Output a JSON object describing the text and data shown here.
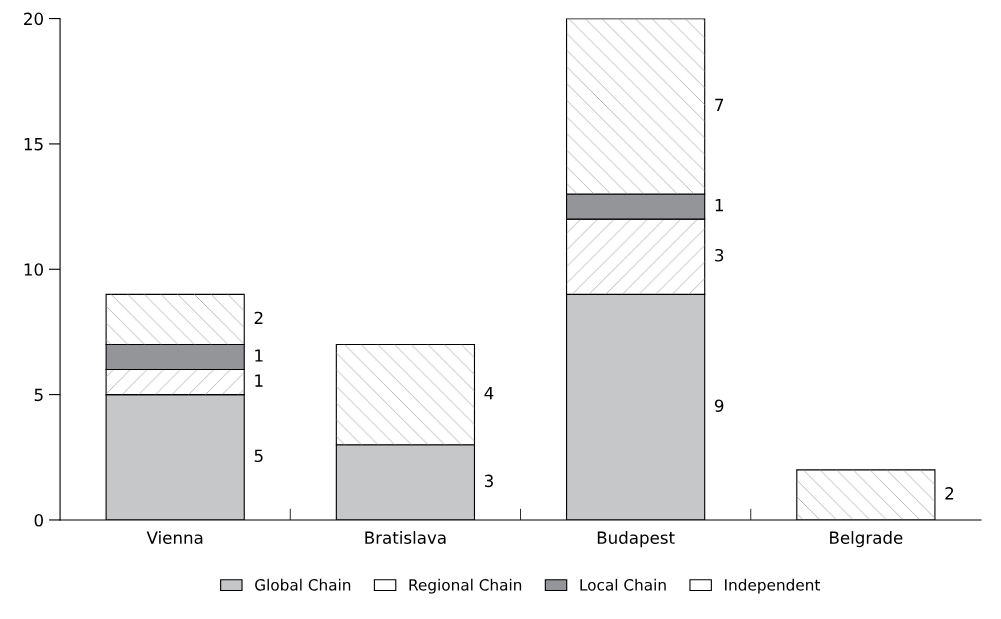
{
  "chart_data": {
    "type": "bar",
    "stacked": true,
    "categories": [
      "Vienna",
      "Bratislava",
      "Budapest",
      "Belgrade"
    ],
    "series": [
      {
        "name": "Global Chain",
        "color": "#c6c7c9",
        "values": [
          5,
          3,
          9,
          0
        ],
        "value_labels": [
          "5",
          "3",
          "9",
          null
        ]
      },
      {
        "name": "Regional Chain",
        "color": "#ffffff",
        "values": [
          1,
          0,
          3,
          0
        ],
        "value_labels": [
          "1",
          null,
          "3",
          null
        ]
      },
      {
        "name": "Local Chain",
        "color": "#939598",
        "values": [
          1,
          0,
          1,
          0
        ],
        "value_labels": [
          "1",
          null,
          "1",
          null
        ]
      },
      {
        "name": "Independent",
        "color": "#ffffff",
        "values": [
          2,
          4,
          7,
          2
        ],
        "value_labels": [
          "2",
          "4",
          "7",
          "2"
        ]
      }
    ],
    "ylim": [
      0,
      20
    ],
    "yticks": [
      0,
      5,
      10,
      15,
      20
    ],
    "grid": false,
    "legend": "bottom"
  }
}
